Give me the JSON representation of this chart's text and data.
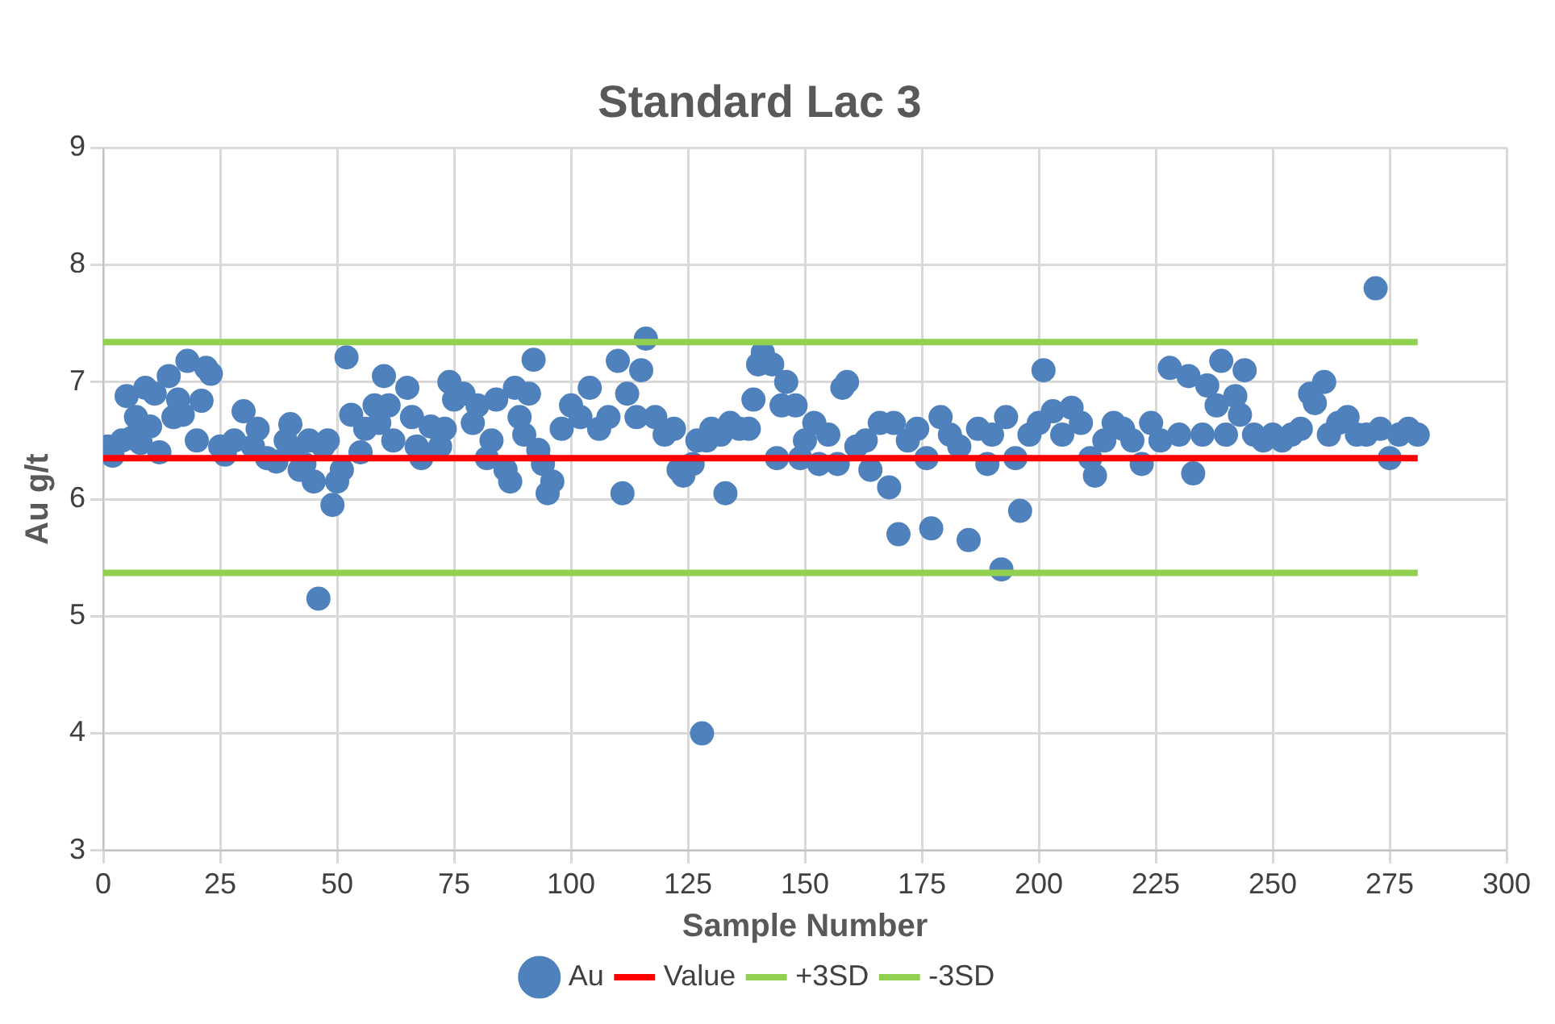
{
  "chart_data": {
    "type": "scatter",
    "title": "Standard Lac 3",
    "xlabel": "Sample Number",
    "ylabel": "Au g/t",
    "xlim": [
      0,
      300
    ],
    "xticks": [
      0,
      25,
      50,
      75,
      100,
      125,
      150,
      175,
      200,
      225,
      250,
      275,
      300
    ],
    "ylim": [
      3,
      9
    ],
    "yticks": [
      3,
      4,
      5,
      6,
      7,
      8,
      9
    ],
    "grid": true,
    "legend": "bottom",
    "series": [
      {
        "name": "Au",
        "type": "scatter",
        "marker": "circle",
        "color": "#4f81bd",
        "x": [
          1,
          2,
          4,
          5,
          6,
          7,
          8,
          9,
          10,
          11,
          12,
          14,
          15,
          16,
          17,
          18,
          20,
          21,
          22,
          23,
          25,
          26,
          28,
          30,
          32,
          33,
          35,
          37,
          39,
          40,
          41,
          42,
          43,
          44,
          45,
          46,
          47,
          48,
          49,
          50,
          51,
          52,
          53,
          55,
          56,
          58,
          59,
          60,
          61,
          62,
          65,
          66,
          67,
          68,
          70,
          72,
          73,
          74,
          75,
          77,
          79,
          80,
          82,
          83,
          84,
          86,
          87,
          88,
          89,
          90,
          91,
          92,
          93,
          94,
          95,
          96,
          98,
          100,
          102,
          104,
          106,
          108,
          110,
          111,
          112,
          114,
          115,
          116,
          118,
          120,
          122,
          123,
          124,
          126,
          127,
          128,
          129,
          130,
          132,
          133,
          134,
          136,
          138,
          139,
          140,
          141,
          143,
          144,
          145,
          146,
          148,
          149,
          150,
          152,
          153,
          155,
          157,
          158,
          159,
          161,
          163,
          164,
          166,
          168,
          169,
          170,
          172,
          174,
          176,
          177,
          179,
          181,
          183,
          185,
          187,
          189,
          190,
          192,
          193,
          195,
          196,
          198,
          200,
          201,
          203,
          205,
          207,
          209,
          211,
          212,
          214,
          216,
          218,
          220,
          222,
          224,
          226,
          228,
          230,
          232,
          233,
          235,
          236,
          238,
          239,
          240,
          242,
          243,
          244,
          246,
          248,
          250,
          252,
          254,
          256,
          258,
          259,
          261,
          262,
          264,
          266,
          268,
          270,
          272,
          273,
          275,
          277,
          279,
          281
        ],
        "values": [
          6.45,
          6.37,
          6.5,
          6.88,
          6.52,
          6.7,
          6.48,
          6.95,
          6.62,
          6.9,
          6.4,
          7.05,
          6.7,
          6.85,
          6.72,
          7.18,
          6.5,
          6.84,
          7.12,
          7.07,
          6.45,
          6.38,
          6.5,
          6.75,
          6.45,
          6.6,
          6.35,
          6.32,
          6.5,
          6.64,
          6.42,
          6.25,
          6.3,
          6.5,
          6.15,
          5.15,
          6.45,
          6.5,
          5.95,
          6.15,
          6.25,
          7.21,
          6.72,
          6.4,
          6.6,
          6.8,
          6.65,
          7.05,
          6.8,
          6.5,
          6.95,
          6.7,
          6.45,
          6.35,
          6.62,
          6.45,
          6.6,
          7.0,
          6.85,
          6.9,
          6.65,
          6.8,
          6.35,
          6.5,
          6.85,
          6.25,
          6.15,
          6.95,
          6.7,
          6.55,
          6.9,
          7.19,
          6.42,
          6.3,
          6.05,
          6.15,
          6.6,
          6.8,
          6.7,
          6.95,
          6.6,
          6.7,
          7.18,
          6.05,
          6.9,
          6.7,
          7.1,
          7.37,
          6.7,
          6.55,
          6.6,
          6.25,
          6.2,
          6.3,
          6.5,
          4.0,
          6.5,
          6.6,
          6.55,
          6.05,
          6.65,
          6.6,
          6.6,
          6.85,
          7.15,
          7.25,
          7.15,
          6.35,
          6.8,
          7.0,
          6.8,
          6.35,
          6.5,
          6.65,
          6.3,
          6.55,
          6.3,
          6.95,
          7.0,
          6.45,
          6.5,
          6.25,
          6.65,
          6.1,
          6.65,
          5.7,
          6.5,
          6.6,
          6.35,
          5.75,
          6.7,
          6.55,
          6.45,
          5.65,
          6.6,
          6.3,
          6.55,
          5.4,
          6.7,
          6.35,
          5.9,
          6.55,
          6.65,
          7.1,
          6.75,
          6.55,
          6.78,
          6.65,
          6.35,
          6.2,
          6.5,
          6.65,
          6.6,
          6.5,
          6.3,
          6.65,
          6.5,
          7.12,
          6.55,
          7.05,
          6.22,
          6.55,
          6.97,
          6.8,
          7.18,
          6.55,
          6.88,
          6.72,
          7.1,
          6.55,
          6.5,
          6.55,
          6.5,
          6.55,
          6.6,
          6.9,
          6.82,
          7.0,
          6.55,
          6.65,
          6.7,
          6.55,
          6.55,
          7.8,
          6.6,
          6.35,
          6.55,
          6.6,
          6.55
        ]
      },
      {
        "name": "Value",
        "type": "line",
        "marker": "none",
        "color": "#ff0000",
        "x": [
          0,
          281
        ],
        "values": [
          6.35,
          6.35
        ]
      },
      {
        "name": "+3SD",
        "type": "line",
        "marker": "none",
        "color": "#92d050",
        "x": [
          0,
          281
        ],
        "values": [
          7.34,
          7.34
        ]
      },
      {
        "name": "-3SD",
        "type": "line",
        "marker": "none",
        "color": "#92d050",
        "x": [
          0,
          281
        ],
        "values": [
          5.37,
          5.37
        ]
      }
    ]
  }
}
